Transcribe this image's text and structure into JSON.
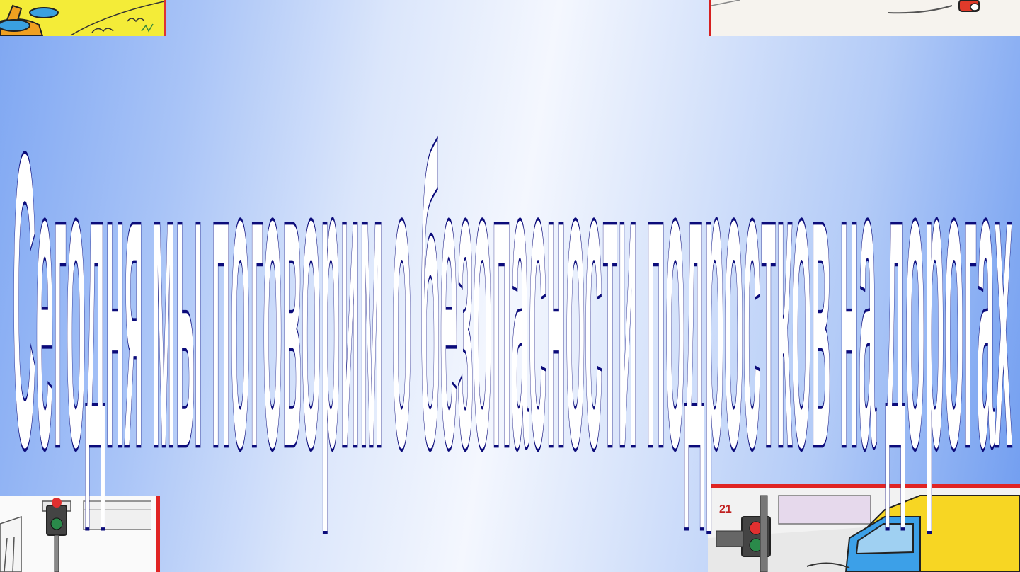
{
  "slide": {
    "title": "Сегодня мы поговорим о безопасности подростков на дорогах",
    "title_fill": "#ffffff",
    "title_outline": "#0b0b7a"
  },
  "pictures": {
    "top_left": "cartoon-boy-walking-illustration",
    "top_right": "cartoon-car-illustration",
    "bottom_left": "traffic-light-crossing-illustration",
    "bottom_right": "truck-at-traffic-light-illustration",
    "bottom_right_page_number": "21"
  }
}
